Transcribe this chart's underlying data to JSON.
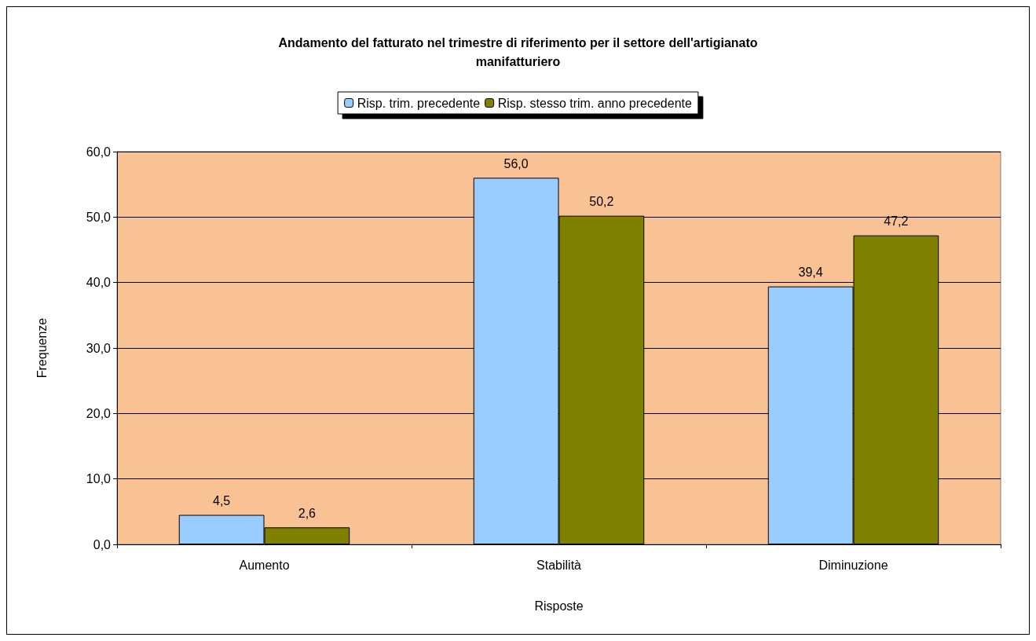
{
  "chart_data": {
    "type": "bar",
    "title": "Andamento del fatturato nel trimestre di riferimento per il settore dell'artigianato\nmanifatturiero",
    "xlabel": "Risposte",
    "ylabel": "Frequenze",
    "categories": [
      "Aumento",
      "Stabilità",
      "Diminuzione"
    ],
    "series": [
      {
        "name": "Risp. trim. precedente",
        "color": "#99ccff",
        "values": [
          4.5,
          56.0,
          39.4
        ],
        "value_labels": [
          "4,5",
          "56,0",
          "39,4"
        ]
      },
      {
        "name": "Risp. stesso trim. anno precedente",
        "color": "#808000",
        "values": [
          2.6,
          50.2,
          47.2
        ],
        "value_labels": [
          "2,6",
          "50,2",
          "47,2"
        ]
      }
    ],
    "ylim": [
      0,
      60
    ],
    "yticks": [
      {
        "value": 0,
        "label": "0,0"
      },
      {
        "value": 10,
        "label": "10,0"
      },
      {
        "value": 20,
        "label": "20,0"
      },
      {
        "value": 30,
        "label": "30,0"
      },
      {
        "value": 40,
        "label": "40,0"
      },
      {
        "value": 50,
        "label": "50,0"
      },
      {
        "value": 60,
        "label": "60,0"
      }
    ],
    "grid": "y",
    "legend": "top"
  }
}
